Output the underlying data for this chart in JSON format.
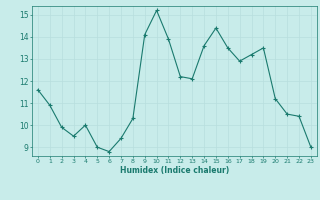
{
  "x": [
    0,
    1,
    2,
    3,
    4,
    5,
    6,
    7,
    8,
    9,
    10,
    11,
    12,
    13,
    14,
    15,
    16,
    17,
    18,
    19,
    20,
    21,
    22,
    23
  ],
  "y": [
    11.6,
    10.9,
    9.9,
    9.5,
    10.0,
    9.0,
    8.8,
    9.4,
    10.3,
    14.1,
    15.2,
    13.9,
    12.2,
    12.1,
    13.6,
    14.4,
    13.5,
    12.9,
    13.2,
    13.5,
    11.2,
    10.5,
    10.4,
    9.0
  ],
  "xlabel": "Humidex (Indice chaleur)",
  "ylim": [
    8.6,
    15.4
  ],
  "xlim": [
    -0.5,
    23.5
  ],
  "yticks": [
    9,
    10,
    11,
    12,
    13,
    14,
    15
  ],
  "xticks": [
    0,
    1,
    2,
    3,
    4,
    5,
    6,
    7,
    8,
    9,
    10,
    11,
    12,
    13,
    14,
    15,
    16,
    17,
    18,
    19,
    20,
    21,
    22,
    23
  ],
  "line_color": "#1a7a6e",
  "marker": "+",
  "background_color": "#c8ecea",
  "grid_color": "#b8dede",
  "tick_color": "#1a7a6e",
  "label_color": "#1a7a6e"
}
